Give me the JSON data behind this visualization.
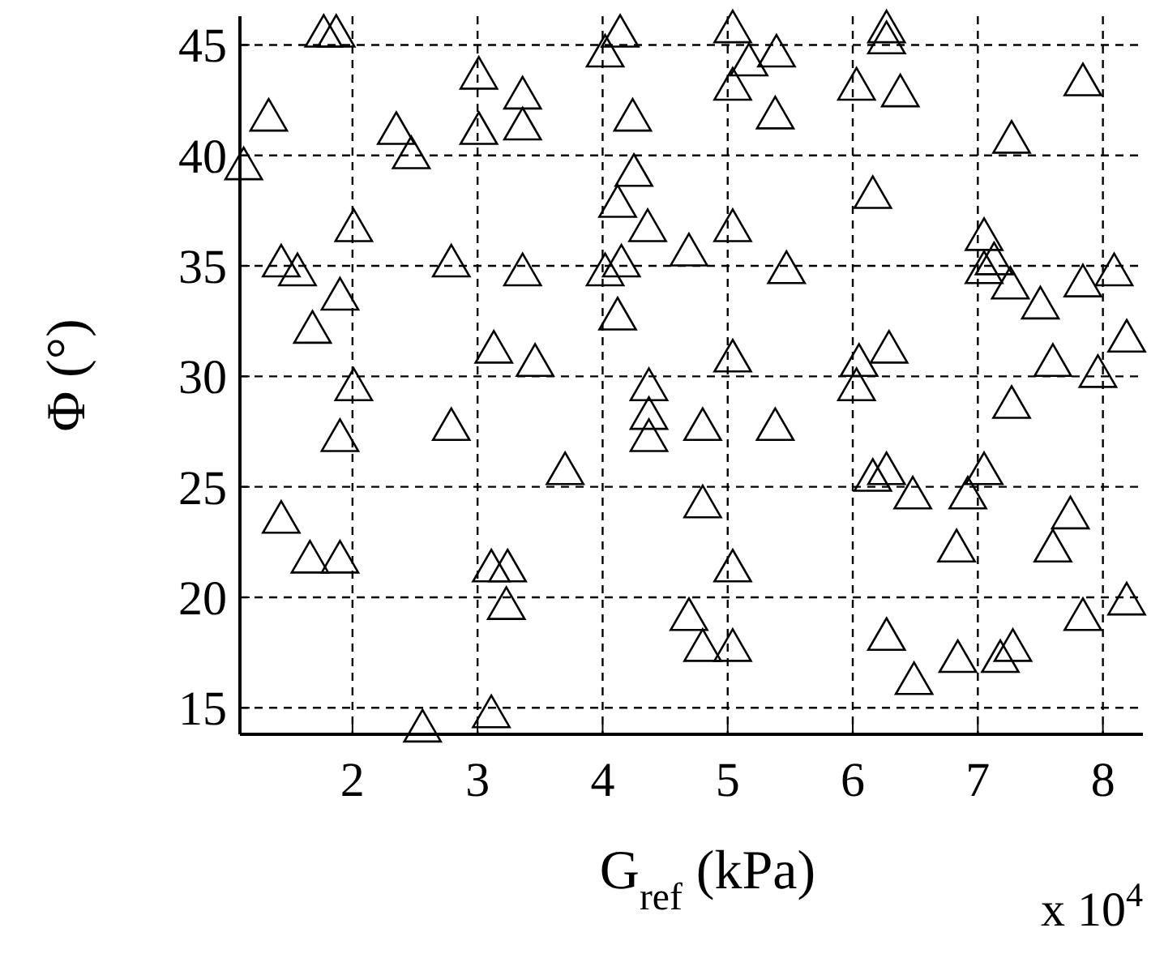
{
  "chart_data": {
    "type": "scatter",
    "xlabel": "G$_{ref}$ (kPa)",
    "ylabel": "Φ (°)",
    "annotations": [
      "x 10$^{4}$"
    ],
    "xlim": [
      1.1,
      8.32
    ],
    "ylim": [
      13.8,
      46.3
    ],
    "xticks": [
      2,
      3,
      4,
      5,
      6,
      7,
      8
    ],
    "yticks": [
      15,
      20,
      25,
      30,
      35,
      40,
      45
    ],
    "grid": true,
    "marker": "triangle",
    "series": [
      {
        "color": "#000000",
        "x": [
          1.77,
          1.87,
          3.01,
          3.36,
          4.14,
          4.02,
          1.33,
          2.35,
          2.47,
          3.01,
          3.36,
          4.24,
          1.13,
          4.25,
          4.12,
          4.36,
          2.01,
          1.43,
          1.56,
          2.79,
          3.36,
          4.02,
          4.15,
          4.69,
          1.9,
          1.68,
          4.12,
          3.13,
          3.46,
          2.01,
          4.37,
          4.37,
          4.37,
          5.04,
          5.17,
          5.39,
          5.04,
          5.38,
          6.27,
          6.27,
          6.03,
          6.38,
          7.84,
          7.27,
          6.16,
          5.04,
          5.47,
          7.05,
          7.05,
          7.13,
          7.26,
          7.5,
          7.84,
          8.09,
          8.19,
          5.04,
          6.05,
          6.29,
          7.6,
          7.96,
          6.03,
          4.8,
          5.38,
          7.27,
          4.8,
          5.04,
          6.16,
          6.27,
          6.48,
          6.92,
          7.05,
          7.74,
          7.6,
          6.83,
          4.69,
          4.8,
          5.04,
          6.27,
          6.49,
          6.84,
          7.18,
          7.28,
          7.84,
          8.19,
          1.9,
          2.79,
          3.7,
          1.43,
          1.66,
          1.9,
          3.11,
          3.24,
          3.23,
          2.56,
          3.11
        ],
        "values": [
          45.4,
          45.4,
          43.5,
          42.6,
          45.4,
          44.5,
          41.6,
          41.0,
          39.9,
          41.0,
          41.2,
          41.6,
          39.4,
          39.1,
          37.7,
          36.6,
          36.6,
          35.0,
          34.6,
          35.0,
          34.6,
          34.6,
          35.0,
          35.5,
          33.5,
          32.0,
          32.6,
          31.1,
          30.5,
          29.4,
          29.4,
          28.1,
          27.1,
          45.6,
          44.1,
          44.5,
          43.0,
          41.7,
          45.6,
          45.1,
          43.0,
          42.7,
          43.2,
          40.6,
          38.1,
          36.6,
          34.7,
          36.2,
          34.7,
          35.1,
          34.0,
          33.1,
          34.1,
          34.6,
          31.6,
          30.7,
          30.5,
          31.1,
          30.5,
          30.0,
          29.4,
          27.6,
          27.6,
          28.6,
          24.1,
          21.2,
          25.3,
          25.6,
          24.5,
          24.5,
          25.6,
          23.6,
          22.1,
          22.1,
          19.0,
          17.6,
          17.6,
          18.1,
          16.1,
          17.1,
          17.1,
          17.6,
          19.0,
          19.7,
          27.1,
          27.6,
          25.6,
          23.4,
          21.6,
          21.6,
          21.2,
          21.2,
          19.5,
          13.95,
          14.6
        ]
      }
    ]
  }
}
